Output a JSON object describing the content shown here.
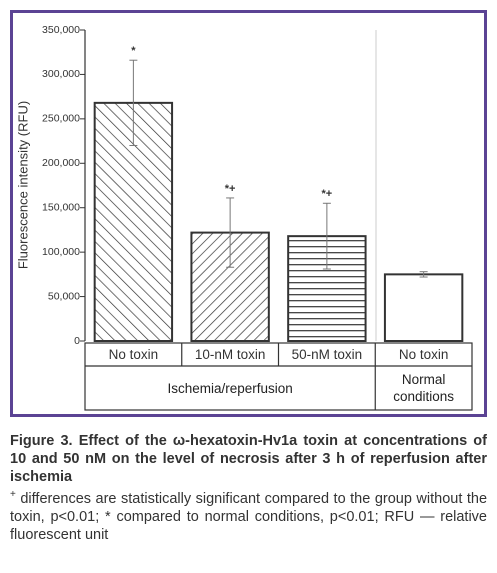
{
  "chart_data": {
    "type": "bar",
    "y_label": "Fluorescence intensity (RFU)",
    "categories": [
      "No toxin",
      "10-nM toxin",
      "50-nM toxin",
      "No toxin"
    ],
    "groups": [
      "Ischemia/reperfusion",
      "Normal conditions"
    ],
    "values": [
      268000,
      122000,
      118000,
      75000
    ],
    "errors": [
      48000,
      39000,
      37000,
      3000
    ],
    "annotations": [
      "*",
      "*+",
      "*+",
      null
    ],
    "patterns": [
      "backslash",
      "slash",
      "horizontal",
      "none"
    ],
    "color": "#333333",
    "ylim": [
      0,
      350000
    ],
    "yticks": [
      0,
      {
        "value": 50000,
        "label": "50,000"
      },
      {
        "value": 100000,
        "label": "100,000"
      },
      {
        "value": 150000,
        "label": "150,000"
      },
      {
        "value": 200000,
        "label": "200,000"
      },
      {
        "value": 250000,
        "label": "250,000"
      },
      {
        "value": 300000,
        "label": "300,000"
      },
      {
        "value": 350000,
        "label": "350,000"
      }
    ]
  },
  "caption": {
    "title": "Figure 3. Effect of the ω-hexatoxin-Hv1a toxin at concentrations of 10 and 50 nM on the level of necrosis after 3 h of reperfusion after ischemia",
    "note_mark": "+",
    "note": "differences are statistically significant compared to the group without the toxin, p<0.01; * compared to normal conditions, p<0.01; RFU — relative fluorescent unit"
  }
}
